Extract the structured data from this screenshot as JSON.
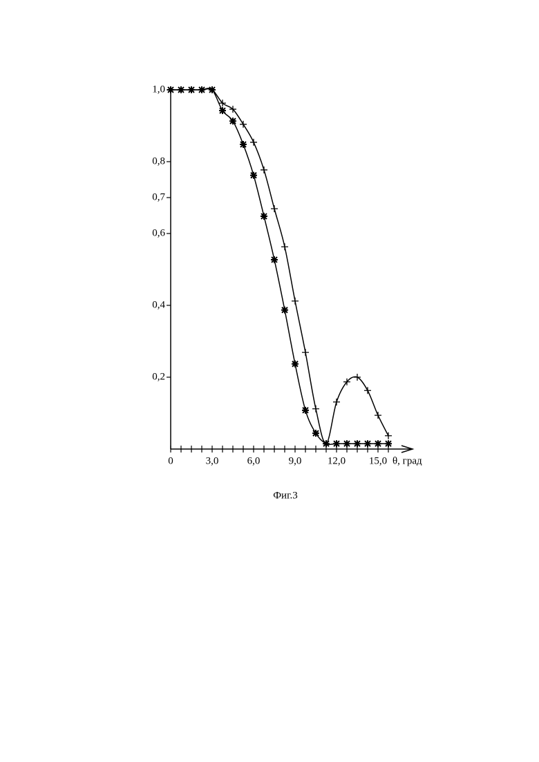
{
  "chart_data": {
    "type": "line",
    "x_label": "θ, град",
    "caption": "Фиг.3",
    "xlim": [
      0,
      17.5
    ],
    "ylim": [
      0,
      1.0
    ],
    "xticks": [
      {
        "value": 0,
        "label": "0"
      },
      {
        "value": 3.0,
        "label": "3,0"
      },
      {
        "value": 6.0,
        "label": "6,0"
      },
      {
        "value": 9.0,
        "label": "9,0"
      },
      {
        "value": 12.0,
        "label": "12,0"
      },
      {
        "value": 15.0,
        "label": "15,0"
      }
    ],
    "xminorticks": [
      0.75,
      1.5,
      2.25,
      3.75,
      4.5,
      5.25,
      6.75,
      7.5,
      8.25,
      9.75,
      10.5,
      11.25,
      12.75,
      13.5,
      14.25,
      15.75
    ],
    "yticks": [
      {
        "value": 1.0,
        "label": "1,0"
      },
      {
        "value": 0.8,
        "label": "0,8"
      },
      {
        "value": 0.7,
        "label": "0,7"
      },
      {
        "value": 0.6,
        "label": "0,6"
      },
      {
        "value": 0.4,
        "label": "0,4"
      },
      {
        "value": 0.2,
        "label": "0,2"
      }
    ],
    "x": [
      0,
      0.75,
      1.5,
      2.25,
      3.0,
      3.75,
      4.5,
      5.25,
      6.0,
      6.75,
      7.5,
      8.25,
      9.0,
      9.75,
      10.5,
      11.25,
      12.0,
      12.75,
      13.5,
      14.25,
      15.0,
      15.75
    ],
    "series": [
      {
        "marker": "asterisk",
        "color": "#000000",
        "values": [
          1.0,
          1.0,
          1.0,
          1.0,
          1.0,
          0.942,
          0.913,
          0.848,
          0.762,
          0.648,
          0.527,
          0.387,
          0.237,
          0.108,
          0.044,
          0.015,
          0.015,
          0.015,
          0.015,
          0.015,
          0.015,
          0.015
        ]
      },
      {
        "marker": "plus",
        "color": "#000000",
        "values": [
          1.0,
          1.0,
          1.0,
          1.0,
          1.0,
          0.963,
          0.946,
          0.904,
          0.854,
          0.777,
          0.669,
          0.563,
          0.412,
          0.269,
          0.112,
          0.015,
          0.131,
          0.187,
          0.2,
          0.163,
          0.094,
          0.037
        ]
      }
    ]
  }
}
